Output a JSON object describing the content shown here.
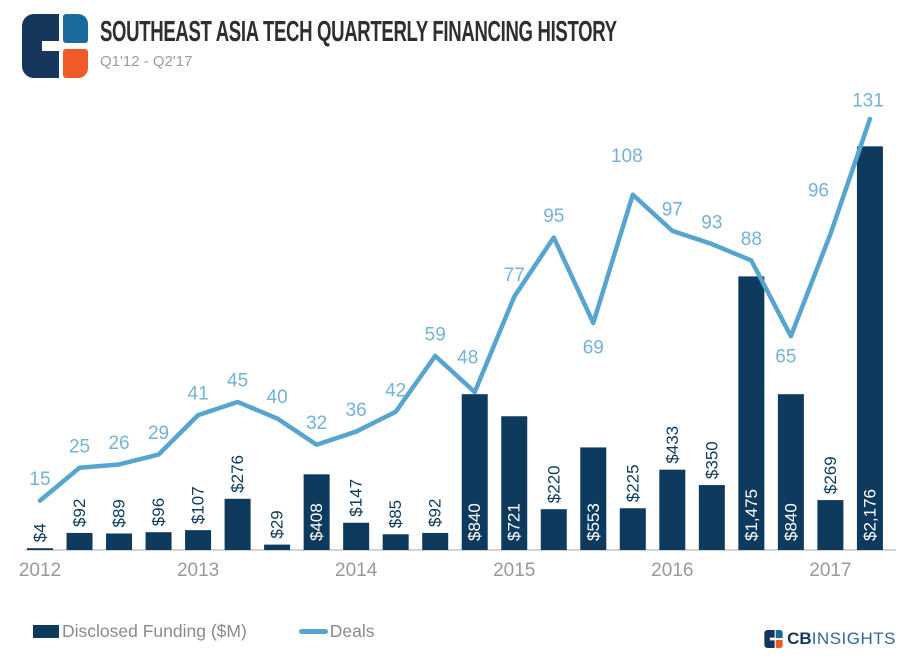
{
  "header": {
    "title": "SOUTHEAST ASIA TECH QUARTERLY FINANCING HISTORY",
    "subtitle": "Q1'12 - Q2'17"
  },
  "legend": {
    "funding_label": "Disclosed Funding ($M)",
    "deals_label": "Deals"
  },
  "branding": {
    "wordmark_bold": "CB",
    "wordmark_rest": "INSIGHTS"
  },
  "colors": {
    "bar": "#0e3a5e",
    "line": "#57a5cf",
    "deal_label": "#74b2d7",
    "bar_label_outside": "#0e3a5e",
    "bar_label_inside": "#ffffff",
    "axis": "#d4d4d4",
    "year_label": "#999999",
    "title": "#2f2f2f",
    "subtitle": "#9c9c9c",
    "logo_navy": "#16365c",
    "logo_blue": "#1a6a9d",
    "logo_orange": "#f05a28"
  },
  "chart_data": {
    "type": "bar+line",
    "title": "Southeast Asia Tech Quarterly Financing History",
    "x_range": "Q1'12 - Q2'17",
    "categories": [
      "Q1'12",
      "Q2'12",
      "Q3'12",
      "Q4'12",
      "Q1'13",
      "Q2'13",
      "Q3'13",
      "Q4'13",
      "Q1'14",
      "Q2'14",
      "Q3'14",
      "Q4'14",
      "Q1'15",
      "Q2'15",
      "Q3'15",
      "Q4'15",
      "Q1'16",
      "Q2'16",
      "Q3'16",
      "Q4'16",
      "Q1'17",
      "Q2'17"
    ],
    "year_ticks": [
      "2012",
      "2013",
      "2014",
      "2015",
      "2016",
      "2017"
    ],
    "grid": false,
    "legend_position": "bottom-left",
    "series": [
      {
        "name": "Disclosed Funding ($M)",
        "type": "bar",
        "values": [
          4,
          92,
          89,
          96,
          107,
          276,
          29,
          408,
          147,
          85,
          92,
          840,
          721,
          220,
          553,
          225,
          433,
          350,
          1475,
          840,
          269,
          2176
        ],
        "labels": [
          "$4",
          "$92",
          "$89",
          "$96",
          "$107",
          "$276",
          "$29",
          "$408",
          "$147",
          "$85",
          "$92",
          "$840",
          "$721",
          "$220",
          "$553",
          "$225",
          "$433",
          "$350",
          "$1,475",
          "$840",
          "$269",
          "$2,176"
        ],
        "label_inside": [
          false,
          false,
          false,
          false,
          false,
          false,
          false,
          true,
          false,
          false,
          false,
          true,
          true,
          false,
          true,
          false,
          false,
          false,
          true,
          true,
          false,
          true
        ],
        "ylim": [
          0,
          2500
        ]
      },
      {
        "name": "Deals",
        "type": "line",
        "values": [
          15,
          25,
          26,
          29,
          41,
          45,
          40,
          32,
          36,
          42,
          59,
          48,
          77,
          95,
          69,
          108,
          97,
          93,
          88,
          65,
          96,
          131
        ],
        "label_offsets": [
          null,
          null,
          null,
          null,
          null,
          null,
          null,
          null,
          null,
          null,
          null,
          [
            -7,
            -34
          ],
          null,
          null,
          [
            0,
            25
          ],
          [
            -6,
            -38
          ],
          null,
          null,
          null,
          [
            -5,
            21
          ],
          [
            -12,
            -43
          ],
          [
            -2,
            -18
          ]
        ],
        "ylim": [
          0,
          145
        ]
      }
    ]
  }
}
